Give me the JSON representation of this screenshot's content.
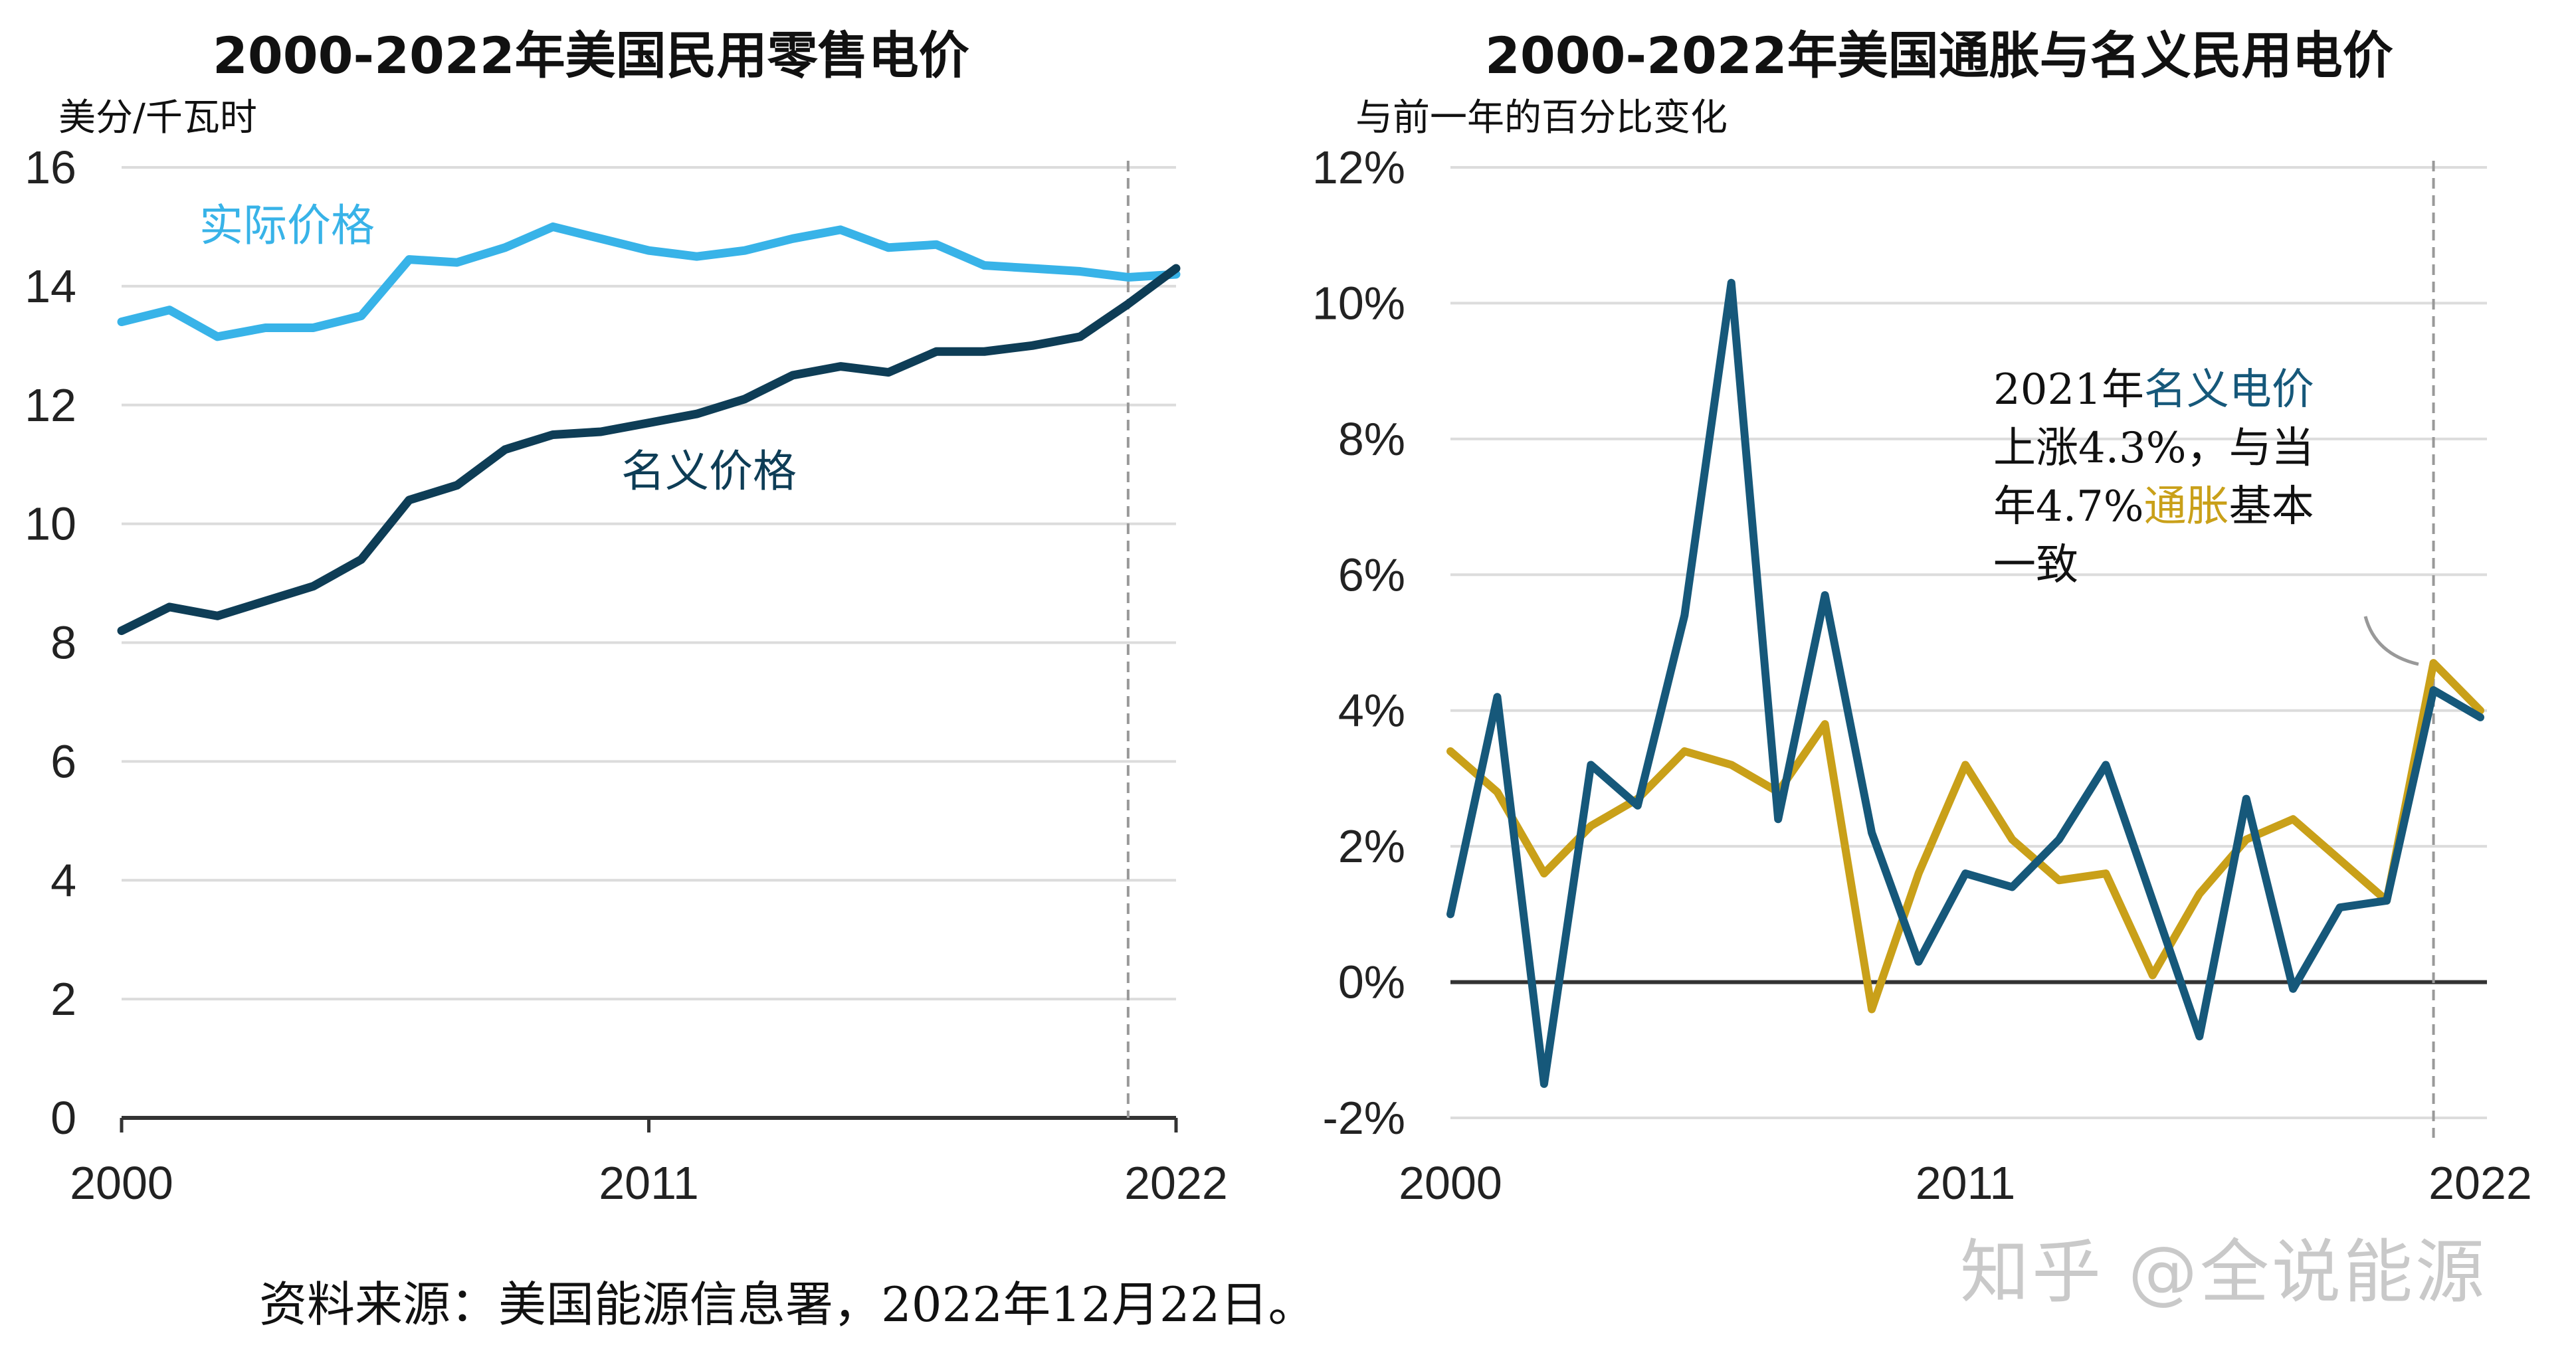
{
  "source_text": "资料来源：美国能源信息署，2022年12月22日。",
  "watermark": "知乎 @全说能源",
  "colors": {
    "real": "#38b3e8",
    "nominal": "#0e3d56",
    "nominal_right": "#16587a",
    "inflation": "#c9a019",
    "grid": "#dcdcdc",
    "zero_axis": "#333333",
    "marker": "#999999"
  },
  "chart_data": [
    {
      "type": "line",
      "title": "2000-2022年美国民用零售电价",
      "ylabel": "美分/千瓦时",
      "x": [
        2000,
        2001,
        2002,
        2003,
        2004,
        2005,
        2006,
        2007,
        2008,
        2009,
        2010,
        2011,
        2012,
        2013,
        2014,
        2015,
        2016,
        2017,
        2018,
        2019,
        2020,
        2021,
        2022
      ],
      "xticks": [
        "2000",
        "2011",
        "2022"
      ],
      "ylim": [
        0,
        16
      ],
      "yticks": [
        "0",
        "2",
        "4",
        "6",
        "8",
        "10",
        "12",
        "14",
        "16"
      ],
      "marker_x": 2021,
      "grid": true,
      "series": [
        {
          "name": "实际价格",
          "values": [
            13.4,
            13.6,
            13.15,
            13.3,
            13.3,
            13.5,
            14.45,
            14.4,
            14.65,
            15.0,
            14.8,
            14.6,
            14.5,
            14.6,
            14.8,
            14.95,
            14.65,
            14.7,
            14.35,
            14.3,
            14.25,
            14.15,
            14.2
          ]
        },
        {
          "name": "名义价格",
          "values": [
            8.2,
            8.6,
            8.45,
            8.7,
            8.95,
            9.4,
            10.4,
            10.65,
            11.25,
            11.5,
            11.55,
            11.7,
            11.85,
            12.1,
            12.5,
            12.65,
            12.55,
            12.9,
            12.9,
            13.0,
            13.15,
            13.7,
            14.3
          ]
        }
      ]
    },
    {
      "type": "line",
      "title": "2000-2022年美国通胀与名义民用电价",
      "ylabel": "与前一年的百分比变化",
      "x": [
        2000,
        2001,
        2002,
        2003,
        2004,
        2005,
        2006,
        2007,
        2008,
        2009,
        2010,
        2011,
        2012,
        2013,
        2014,
        2015,
        2016,
        2017,
        2018,
        2019,
        2020,
        2021,
        2022
      ],
      "xticks": [
        "2000",
        "2011",
        "2022"
      ],
      "ylim": [
        -2,
        12
      ],
      "yticks": [
        "-2%",
        "0%",
        "2%",
        "4%",
        "6%",
        "8%",
        "10%",
        "12%"
      ],
      "marker_x": 2021,
      "grid": true,
      "series": [
        {
          "name": "通胀",
          "values": [
            3.4,
            2.8,
            1.6,
            2.3,
            2.7,
            3.4,
            3.2,
            2.8,
            3.8,
            -0.4,
            1.6,
            3.2,
            2.1,
            1.5,
            1.6,
            0.1,
            1.3,
            2.1,
            2.4,
            1.8,
            1.2,
            4.7,
            4.0
          ]
        },
        {
          "name": "名义电价",
          "values": [
            1.0,
            4.2,
            -1.5,
            3.2,
            2.6,
            5.4,
            10.3,
            2.4,
            5.7,
            2.2,
            0.3,
            1.6,
            1.4,
            2.1,
            3.2,
            1.2,
            -0.8,
            2.7,
            -0.1,
            1.1,
            1.2,
            4.3,
            3.9
          ]
        }
      ],
      "annotation": {
        "parts": [
          {
            "text": "2021年",
            "color": "#111111"
          },
          {
            "text": "名义电价",
            "color": "#16587a"
          },
          {
            "text": "上涨4.3%，与当",
            "color": "#111111"
          },
          {
            "text": "年4.7%",
            "color": "#111111"
          },
          {
            "text": "通胀",
            "color": "#c9a019"
          },
          {
            "text": "基本",
            "color": "#111111"
          },
          {
            "text": "一致",
            "color": "#111111"
          }
        ]
      }
    }
  ]
}
